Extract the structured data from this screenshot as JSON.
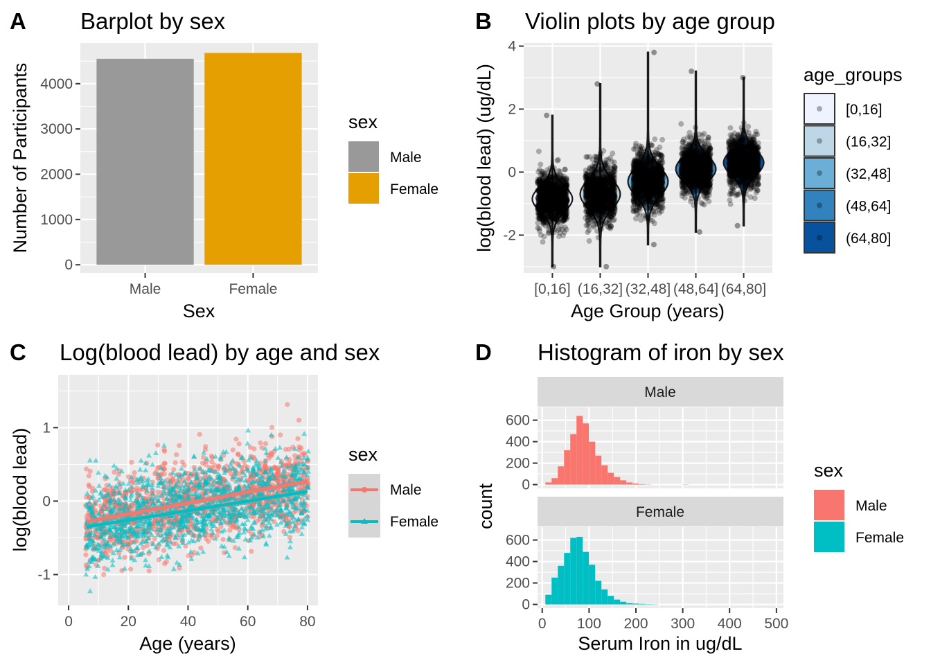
{
  "chart_data": [
    {
      "tag": "A",
      "type": "bar",
      "title": "Barplot by sex",
      "xlabel": "Sex",
      "ylabel": "Number of Participants",
      "categories": [
        "Male",
        "Female"
      ],
      "values": [
        4550,
        4680
      ],
      "colors": [
        "#999999",
        "#E69F00"
      ],
      "ylim": [
        -180,
        4900
      ],
      "yticks": [
        0,
        1000,
        2000,
        3000,
        4000
      ],
      "ytick_labels": [
        "0",
        "1000",
        "2000",
        "3000",
        "4000"
      ],
      "grid": true,
      "legend": {
        "title": "sex",
        "position": "right",
        "entries": [
          {
            "label": "Male",
            "color": "#999999"
          },
          {
            "label": "Female",
            "color": "#E69F00"
          }
        ]
      }
    },
    {
      "tag": "B",
      "type": "violin",
      "title": "Violin plots by age group",
      "xlabel": "Age Group (years)",
      "ylabel": "log(blood lead) (ug/dL)",
      "categories": [
        "[0,16]",
        "(16,32]",
        "(32,48]",
        "(48,64]",
        "(64,80]"
      ],
      "fills": [
        "#EFF3FF",
        "#BDD7E7",
        "#6BAED6",
        "#3182BD",
        "#08519C"
      ],
      "center": [
        -0.85,
        -0.7,
        -0.3,
        0.1,
        0.3
      ],
      "spread": [
        0.4,
        0.45,
        0.45,
        0.4,
        0.4
      ],
      "min": [
        -3.0,
        -3.0,
        -2.3,
        -1.9,
        -1.7
      ],
      "max": [
        1.8,
        2.8,
        3.8,
        3.2,
        3.0
      ],
      "ylim": [
        -3.2,
        4.1
      ],
      "yticks": [
        -2,
        0,
        2,
        4
      ],
      "ytick_labels": [
        "-2",
        "0",
        "2",
        "4"
      ],
      "grid": true,
      "legend": {
        "title": "age_groups",
        "position": "right",
        "entries": [
          {
            "label": "[0,16]",
            "color": "#EFF3FF"
          },
          {
            "label": "(16,32]",
            "color": "#BDD7E7"
          },
          {
            "label": "(32,48]",
            "color": "#6BAED6"
          },
          {
            "label": "(48,64]",
            "color": "#3182BD"
          },
          {
            "label": "(64,80]",
            "color": "#08519C"
          }
        ]
      }
    },
    {
      "tag": "C",
      "type": "scatter",
      "title": "Log(blood lead) by age and sex",
      "xlabel": "Age (years)",
      "ylabel": "log(blood lead)",
      "series": [
        {
          "name": "Male",
          "color": "#F8766D",
          "marker": "circle",
          "fit_start": [
            6,
            -0.28
          ],
          "fit_end": [
            80,
            0.27
          ]
        },
        {
          "name": "Female",
          "color": "#00BFC4",
          "marker": "triangle",
          "fit_start": [
            6,
            -0.35
          ],
          "fit_end": [
            80,
            0.13
          ]
        }
      ],
      "xlim": [
        -3.5,
        83.5
      ],
      "ylim": [
        -1.42,
        1.72
      ],
      "xticks": [
        0,
        20,
        40,
        60,
        80
      ],
      "xtick_labels": [
        "0",
        "20",
        "40",
        "60",
        "80"
      ],
      "yticks": [
        -1,
        0,
        1
      ],
      "ytick_labels": [
        "-1",
        "0",
        "1"
      ],
      "grid": true,
      "legend": {
        "title": "sex",
        "position": "right",
        "entries": [
          {
            "label": "Male",
            "color": "#F8766D"
          },
          {
            "label": "Female",
            "color": "#00BFC4"
          }
        ]
      }
    },
    {
      "tag": "D",
      "type": "histogram",
      "title": "Histogram of iron by sex",
      "xlabel": "Serum Iron in ug/dL",
      "ylabel": "count",
      "bin_width": 13.3,
      "bin_start": 6.7,
      "xlim": [
        -10,
        515
      ],
      "ylim": [
        -35,
        720
      ],
      "xticks": [
        0,
        100,
        200,
        300,
        400,
        500
      ],
      "xtick_labels": [
        "0",
        "100",
        "200",
        "300",
        "400",
        "500"
      ],
      "yticks": [
        0,
        200,
        400,
        600
      ],
      "ytick_labels": [
        "0",
        "200",
        "400",
        "600"
      ],
      "grid": true,
      "facets": [
        {
          "name": "Male",
          "color": "#F8766D",
          "counts": [
            20,
            60,
            170,
            320,
            470,
            640,
            570,
            400,
            270,
            180,
            110,
            70,
            40,
            20,
            10,
            5,
            2,
            0,
            0,
            0,
            0,
            0,
            2
          ]
        },
        {
          "name": "Female",
          "color": "#00BFC4",
          "counts": [
            90,
            250,
            360,
            480,
            620,
            630,
            490,
            370,
            220,
            140,
            80,
            45,
            25,
            12,
            8,
            5,
            3,
            2
          ]
        }
      ],
      "legend": {
        "title": "sex",
        "position": "right",
        "entries": [
          {
            "label": "Male",
            "color": "#F8766D"
          },
          {
            "label": "Female",
            "color": "#00BFC4"
          }
        ]
      }
    }
  ]
}
